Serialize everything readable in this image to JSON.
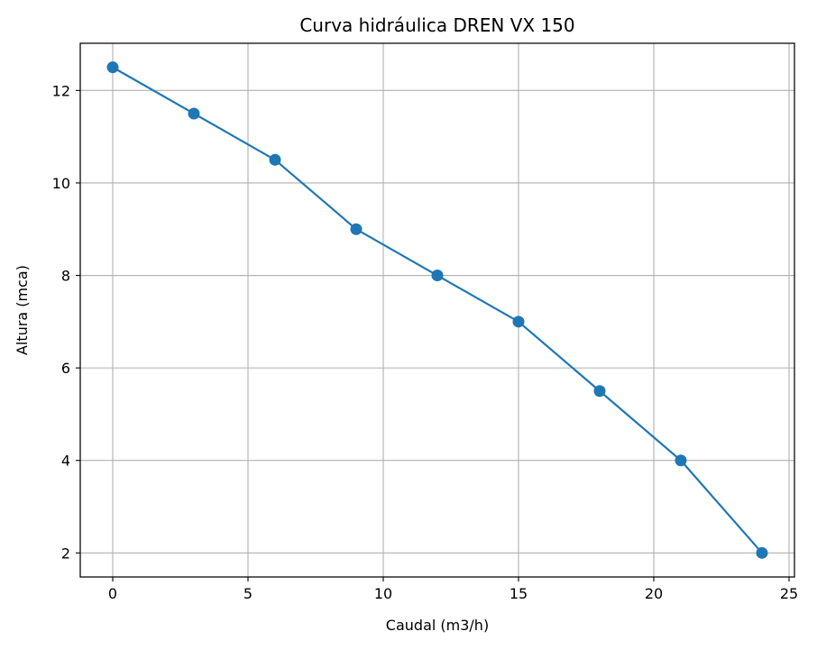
{
  "chart_data": {
    "type": "line",
    "title": "Curva hidráulica DREN VX 150",
    "xlabel": "Caudal (m3/h)",
    "ylabel": "Altura (mca)",
    "xlim": [
      -1.2,
      25.2
    ],
    "ylim": [
      1.48,
      13.02
    ],
    "xticks": [
      0,
      5,
      10,
      15,
      20,
      25
    ],
    "yticks": [
      2,
      4,
      6,
      8,
      10,
      12
    ],
    "grid": true,
    "markers": true,
    "series": [
      {
        "color": "#1f77b4",
        "x": [
          0,
          3,
          6,
          9,
          12,
          15,
          18,
          21,
          24
        ],
        "y": [
          12.5,
          11.5,
          10.5,
          9,
          8,
          7,
          5.5,
          4,
          2
        ]
      }
    ]
  }
}
